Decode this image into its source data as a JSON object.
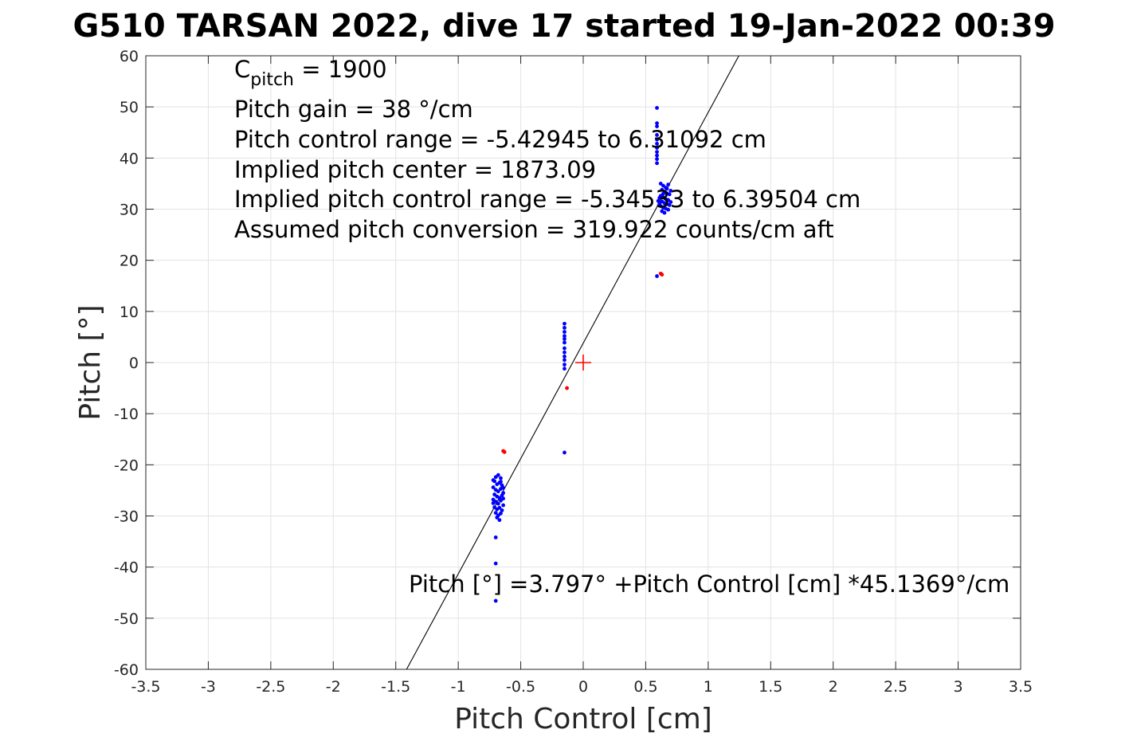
{
  "chart_data": {
    "type": "scatter",
    "title": "G510 TARSAN 2022, dive 17 started 19-Jan-2022 00:39",
    "xlabel": "Pitch Control [cm]",
    "ylabel": "Pitch [°]",
    "xlim": [
      -3.5,
      3.5
    ],
    "ylim": [
      -60,
      60
    ],
    "xticks": [
      -3.5,
      -3,
      -2.5,
      -2,
      -1.5,
      -1,
      -0.5,
      0,
      0.5,
      1,
      1.5,
      2,
      2.5,
      3,
      3.5
    ],
    "xtick_labels": [
      "-3.5",
      "-3",
      "-2.5",
      "-2",
      "-1.5",
      "-1",
      "-0.5",
      "0",
      "0.5",
      "1",
      "1.5",
      "2",
      "2.5",
      "3",
      "3.5"
    ],
    "yticks": [
      -60,
      -50,
      -40,
      -30,
      -20,
      -10,
      0,
      10,
      20,
      30,
      40,
      50,
      60
    ],
    "ytick_labels": [
      "-60",
      "-50",
      "-40",
      "-30",
      "-20",
      "-10",
      "0",
      "10",
      "20",
      "30",
      "40",
      "50",
      "60"
    ],
    "grid": true,
    "annotations": {
      "cpitch_base": "C",
      "cpitch_sub": "pitch",
      "cpitch_value": " = 1900",
      "lines": [
        "Pitch gain = 38 °/cm",
        "Pitch control range = -5.42945 to 6.31092 cm",
        "Implied pitch center = 1873.09",
        "Implied pitch control range = -5.34533 to 6.39504 cm",
        "Assumed pitch conversion = 319.922 counts/cm aft"
      ],
      "fit_label": "Pitch [°] =3.797° +Pitch Control [cm] *45.1369°/cm"
    },
    "fit_line": {
      "intercept": 3.797,
      "slope": 45.1369,
      "color": "#000000"
    },
    "center_marker": {
      "x": 0,
      "y": 0,
      "color": "#ff0000",
      "symbol": "plus"
    },
    "series": [
      {
        "color": "#0000ff",
        "points": [
          [
            0.59,
            49.8
          ],
          [
            0.59,
            46.8
          ],
          [
            0.59,
            46.2
          ],
          [
            0.59,
            44.5
          ],
          [
            0.59,
            43.6
          ],
          [
            0.59,
            42.8
          ],
          [
            0.59,
            42.0
          ],
          [
            0.59,
            41.2
          ],
          [
            0.59,
            40.5
          ],
          [
            0.59,
            39.8
          ],
          [
            0.59,
            39.0
          ],
          [
            0.62,
            35.0
          ],
          [
            0.64,
            34.6
          ],
          [
            0.66,
            34.2
          ],
          [
            0.68,
            34.8
          ],
          [
            0.63,
            33.8
          ],
          [
            0.65,
            33.4
          ],
          [
            0.67,
            33.1
          ],
          [
            0.69,
            32.9
          ],
          [
            0.62,
            32.6
          ],
          [
            0.64,
            32.3
          ],
          [
            0.66,
            32.0
          ],
          [
            0.68,
            31.8
          ],
          [
            0.63,
            31.5
          ],
          [
            0.65,
            31.2
          ],
          [
            0.67,
            31.0
          ],
          [
            0.69,
            30.8
          ],
          [
            0.62,
            30.6
          ],
          [
            0.64,
            30.3
          ],
          [
            0.66,
            30.1
          ],
          [
            0.68,
            29.9
          ],
          [
            0.63,
            29.6
          ],
          [
            0.65,
            29.3
          ],
          [
            0.61,
            32.2
          ],
          [
            0.61,
            31.0
          ],
          [
            0.6,
            31.6
          ],
          [
            0.7,
            31.4
          ],
          [
            0.7,
            33.6
          ],
          [
            0.67,
            34.0
          ],
          [
            0.64,
            33.0
          ],
          [
            0.59,
            16.9
          ],
          [
            -0.15,
            7.6
          ],
          [
            -0.15,
            6.8
          ],
          [
            -0.15,
            6.0
          ],
          [
            -0.15,
            5.2
          ],
          [
            -0.15,
            4.6
          ],
          [
            -0.15,
            3.9
          ],
          [
            -0.15,
            2.8
          ],
          [
            -0.15,
            2.0
          ],
          [
            -0.15,
            1.2
          ],
          [
            -0.15,
            0.5
          ],
          [
            -0.15,
            -0.4
          ],
          [
            -0.15,
            -1.2
          ],
          [
            -0.15,
            -17.6
          ],
          [
            -0.7,
            -22.4
          ],
          [
            -0.68,
            -22.0
          ],
          [
            -0.66,
            -22.6
          ],
          [
            -0.71,
            -23.2
          ],
          [
            -0.69,
            -23.8
          ],
          [
            -0.67,
            -23.5
          ],
          [
            -0.65,
            -24.0
          ],
          [
            -0.72,
            -24.4
          ],
          [
            -0.7,
            -24.9
          ],
          [
            -0.68,
            -25.2
          ],
          [
            -0.66,
            -24.7
          ],
          [
            -0.64,
            -25.5
          ],
          [
            -0.71,
            -25.8
          ],
          [
            -0.69,
            -26.2
          ],
          [
            -0.67,
            -26.5
          ],
          [
            -0.65,
            -26.0
          ],
          [
            -0.72,
            -26.8
          ],
          [
            -0.7,
            -27.2
          ],
          [
            -0.68,
            -27.6
          ],
          [
            -0.66,
            -27.0
          ],
          [
            -0.64,
            -27.9
          ],
          [
            -0.71,
            -28.3
          ],
          [
            -0.69,
            -28.7
          ],
          [
            -0.67,
            -28.4
          ],
          [
            -0.65,
            -28.9
          ],
          [
            -0.7,
            -29.4
          ],
          [
            -0.68,
            -29.9
          ],
          [
            -0.66,
            -29.5
          ],
          [
            -0.69,
            -30.3
          ],
          [
            -0.67,
            -30.8
          ],
          [
            -0.72,
            -23.0
          ],
          [
            -0.66,
            -23.3
          ],
          [
            -0.64,
            -24.5
          ],
          [
            -0.72,
            -27.5
          ],
          [
            -0.64,
            -26.6
          ],
          [
            -0.7,
            -34.2
          ],
          [
            -0.7,
            -39.3
          ],
          [
            -0.7,
            -46.6
          ]
        ]
      },
      {
        "color": "#ff0000",
        "points": [
          [
            0.62,
            17.4
          ],
          [
            0.63,
            17.2
          ],
          [
            -0.13,
            -5.0
          ],
          [
            -0.64,
            -17.3
          ],
          [
            -0.63,
            -17.5
          ]
        ]
      }
    ]
  }
}
